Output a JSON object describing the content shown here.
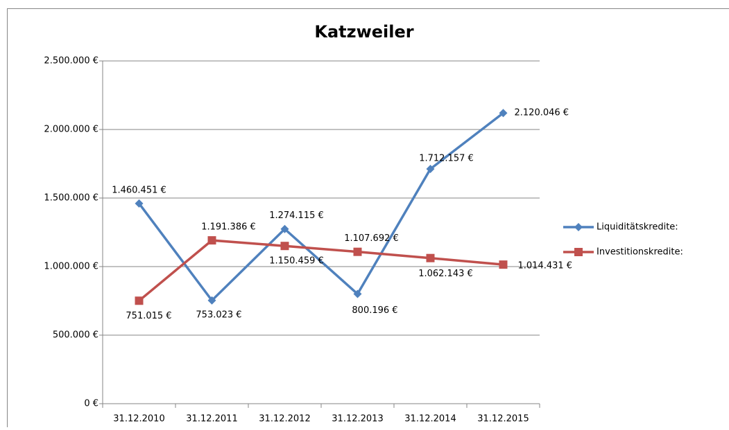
{
  "chart_data": {
    "type": "line",
    "title": "Katzweiler",
    "categories": [
      "31.12.2010",
      "31.12.2011",
      "31.12.2012",
      "31.12.2013",
      "31.12.2014",
      "31.12.2015"
    ],
    "series": [
      {
        "name": "Liquiditätskredite:",
        "color": "#4f81bd",
        "marker": "diamond",
        "values": [
          1460451,
          753023,
          1274115,
          800196,
          1712157,
          2120046
        ],
        "value_labels": [
          "1.460.451 €",
          "753.023 €",
          "1.274.115 €",
          "800.196 €",
          "1.712.157 €",
          "2.120.046 €"
        ]
      },
      {
        "name": "Investitionskredite:",
        "color": "#c0504d",
        "marker": "square",
        "values": [
          751015,
          1191386,
          1150459,
          1107692,
          1062143,
          1014431
        ],
        "value_labels": [
          "751.015 €",
          "1.191.386 €",
          "1.150.459 €",
          "1.107.692 €",
          "1.062.143 €",
          "1.014.431 €"
        ]
      }
    ],
    "ylim": [
      0,
      2500000
    ],
    "yticks": [
      {
        "value": 0,
        "label": "0 €"
      },
      {
        "value": 500000,
        "label": "500.000 €"
      },
      {
        "value": 1000000,
        "label": "1.000.000 €"
      },
      {
        "value": 1500000,
        "label": "1.500.000 €"
      },
      {
        "value": 2000000,
        "label": "2.000.000 €"
      },
      {
        "value": 2500000,
        "label": "2.500.000 €"
      }
    ],
    "grid": true,
    "legend": "right"
  }
}
